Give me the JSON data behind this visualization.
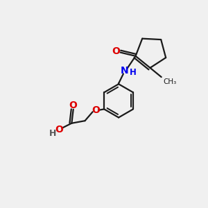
{
  "bg_color": "#f0f0f0",
  "black": "#1a1a1a",
  "blue": "#0000ee",
  "red": "#dd0000",
  "gray": "#555555",
  "lw": 1.6,
  "figsize": [
    3.0,
    3.0
  ],
  "dpi": 100,
  "xlim": [
    0,
    10
  ],
  "ylim": [
    0,
    10
  ]
}
